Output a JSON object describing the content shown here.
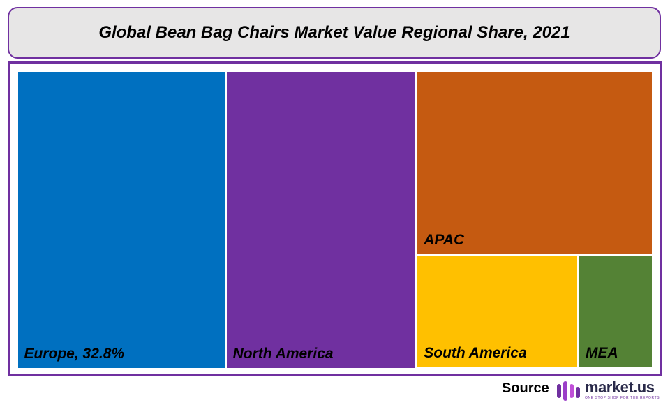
{
  "chart_data": {
    "type": "treemap",
    "title": "Global Bean Bag Chairs Market Value Regional Share, 2021",
    "regions": [
      {
        "name": "Europe",
        "label": "Europe, 32.8%",
        "share": 32.8,
        "color": "#0070c0"
      },
      {
        "name": "North America",
        "label": "North America",
        "share": 30.0,
        "color": "#7030a0"
      },
      {
        "name": "APAC",
        "label": "APAC",
        "share": 23.0,
        "color": "#c55a11"
      },
      {
        "name": "South America",
        "label": "South America",
        "share": 9.7,
        "color": "#ffc000"
      },
      {
        "name": "MEA",
        "label": "MEA",
        "share": 4.5,
        "color": "#548235"
      }
    ]
  },
  "footer": {
    "source_label": "Source",
    "logo_text": "market.us",
    "logo_tagline": "ONE STOP SHOP FOR THE REPORTS"
  },
  "colors": {
    "frame": "#7030a0",
    "title_bg": "#e7e6e6"
  }
}
